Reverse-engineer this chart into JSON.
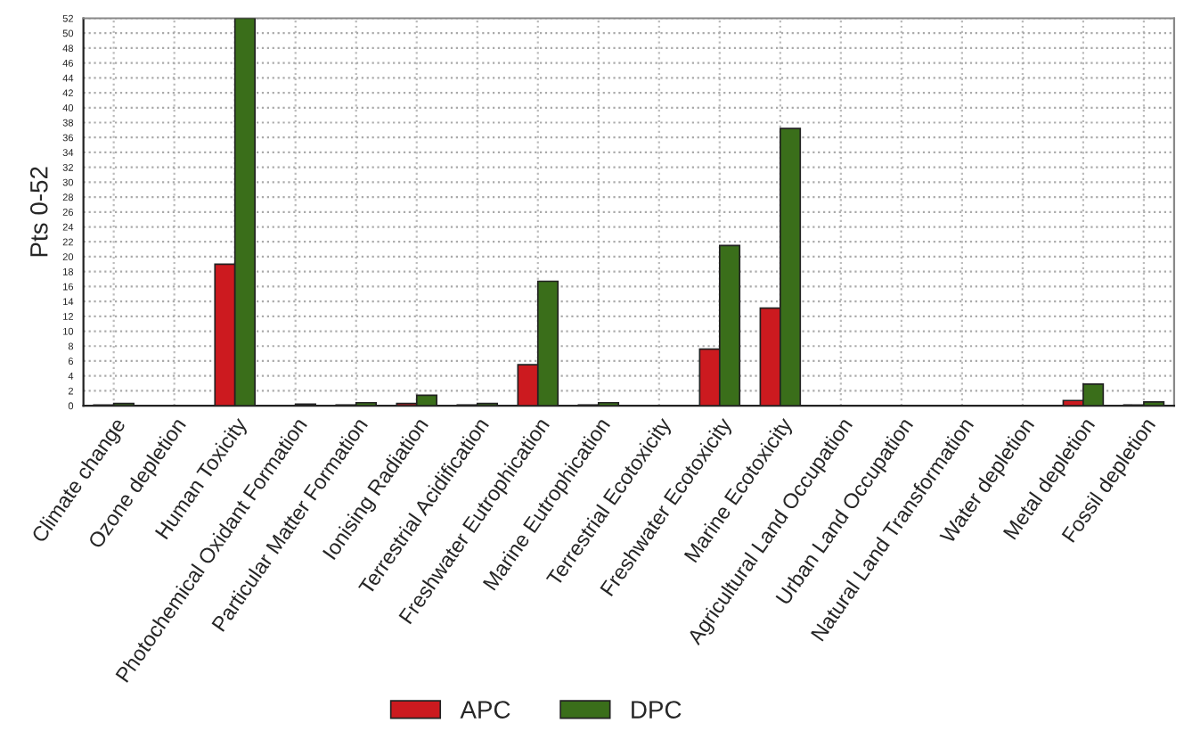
{
  "chart_data": {
    "type": "bar",
    "ylabel": "Pts 0-52",
    "categories": [
      "Climate change",
      "Ozone depletion",
      "Human Toxicity",
      "Photochemical Oxidant Formation",
      "Particular Matter Formation",
      "Ionising Radiation",
      "Terrestrial Acidification",
      "Freshwater Eutrophication",
      "Marine Eutrophication",
      "Terrestrial Ecotoxicity",
      "Freshwater Ecotoxicity",
      "Marine Ecotoxicity",
      "Agricultural Land Occupation",
      "Urban Land Occupation",
      "Natural Land Transformation",
      "Water depletion",
      "Metal depletion",
      "Fossil depletion"
    ],
    "series": [
      {
        "name": "APC",
        "color": "#cc1a1f",
        "values": [
          0.1,
          0,
          19,
          0,
          0.1,
          0.3,
          0.1,
          5.5,
          0.1,
          0,
          7.6,
          13.1,
          0,
          0,
          0,
          0,
          0.7,
          0.1
        ]
      },
      {
        "name": "DPC",
        "color": "#3a6e1a",
        "values": [
          0.3,
          0,
          52,
          0.2,
          0.4,
          1.4,
          0.3,
          16.7,
          0.4,
          0,
          21.5,
          37.2,
          0,
          0,
          0,
          0,
          2.9,
          0.5
        ]
      }
    ],
    "ylim": [
      0,
      52
    ],
    "yticks": [
      0,
      2,
      4,
      6,
      8,
      10,
      12,
      14,
      16,
      18,
      20,
      22,
      24,
      26,
      28,
      30,
      32,
      34,
      36,
      38,
      40,
      42,
      44,
      46,
      48,
      50,
      52
    ],
    "grid": true,
    "legend": "bottom"
  }
}
